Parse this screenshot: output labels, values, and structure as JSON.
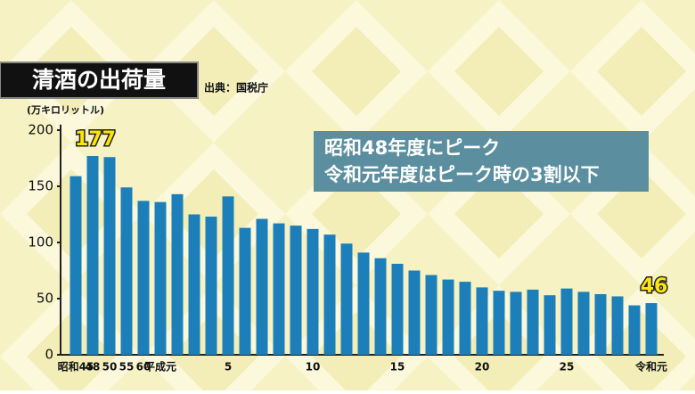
{
  "chart_data": {
    "type": "bar",
    "title": "清酒の出荷量",
    "source": "出典：国税庁",
    "y_label": "(万キロリットル)",
    "annotation": [
      "昭和48年度にピーク",
      "令和元年度はピーク時の3割以下"
    ],
    "categories": [
      "昭和45",
      "48",
      "50",
      "55",
      "60",
      "平成元",
      null,
      null,
      null,
      "5",
      null,
      null,
      null,
      null,
      "10",
      null,
      null,
      null,
      null,
      "15",
      null,
      null,
      null,
      null,
      "20",
      null,
      null,
      null,
      null,
      "25",
      null,
      null,
      null,
      null,
      "令和元"
    ],
    "values": [
      159,
      177,
      176,
      149,
      137,
      136,
      143,
      125,
      123,
      141,
      113,
      121,
      117,
      115,
      112,
      107,
      99,
      91,
      86,
      81,
      75,
      71,
      67,
      65,
      60,
      57,
      56,
      58,
      53,
      59,
      56,
      54,
      52,
      44,
      46
    ],
    "color": "#1c7fb9",
    "ylim": [
      0,
      205
    ],
    "yticks": [
      0,
      50,
      100,
      150,
      200
    ],
    "grid": false
  }
}
